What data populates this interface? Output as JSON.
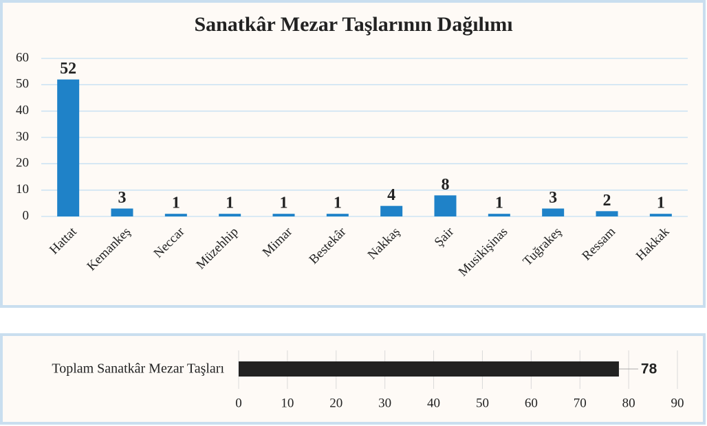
{
  "chart_data": [
    {
      "type": "bar",
      "title": "Sanatkâr Mezar Taşlarının Dağılımı",
      "categories": [
        "Hattat",
        "Kemankeş",
        "Neccar",
        "Müzehhip",
        "Mimar",
        "Bestekâr",
        "Nakkaş",
        "Şair",
        "Musikişinas",
        "Tuğrakeş",
        "Ressam",
        "Hakkak"
      ],
      "values": [
        52,
        3,
        1,
        1,
        1,
        1,
        4,
        8,
        1,
        3,
        2,
        1
      ],
      "color": "#1f82c8",
      "label_color": "#2d5f9a",
      "ylim": [
        0,
        60
      ],
      "yticks": [
        0,
        10,
        20,
        30,
        40,
        50,
        60
      ],
      "grid": true
    },
    {
      "type": "hbar",
      "categories": [
        "Toplam Sanatkâr Mezar Taşları"
      ],
      "values": [
        78
      ],
      "color": "#222222",
      "label_color": "#595959",
      "xlim": [
        0,
        90
      ],
      "xticks": [
        0,
        10,
        20,
        30,
        40,
        50,
        60,
        70,
        80,
        90
      ],
      "grid": true
    }
  ]
}
